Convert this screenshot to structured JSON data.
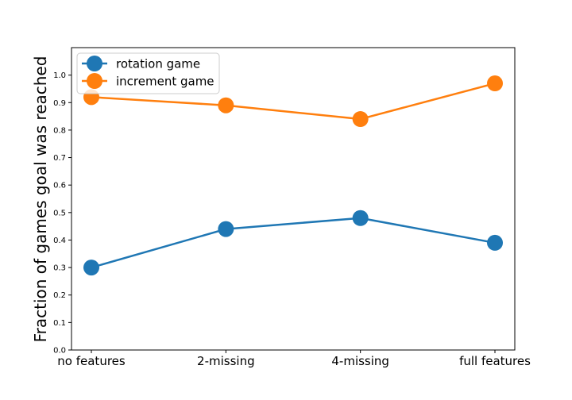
{
  "chart_data": {
    "type": "line",
    "title": "",
    "xlabel": "",
    "ylabel": "Fraction of games goal was reached",
    "categories": [
      "no features",
      "2-missing",
      "4-missing",
      "full features"
    ],
    "ylim": [
      0.0,
      1.1
    ],
    "yticks": [
      "0.0",
      "0.1",
      "0.2",
      "0.3",
      "0.4",
      "0.5",
      "0.6",
      "0.7",
      "0.8",
      "0.9",
      "1.0"
    ],
    "grid": false,
    "legend_position": "top-left",
    "series": [
      {
        "name": "rotation game",
        "color": "#1f77b4",
        "values": [
          0.3,
          0.44,
          0.48,
          0.39
        ]
      },
      {
        "name": "increment game",
        "color": "#ff7f0e",
        "values": [
          0.92,
          0.89,
          0.84,
          0.97
        ]
      }
    ]
  }
}
